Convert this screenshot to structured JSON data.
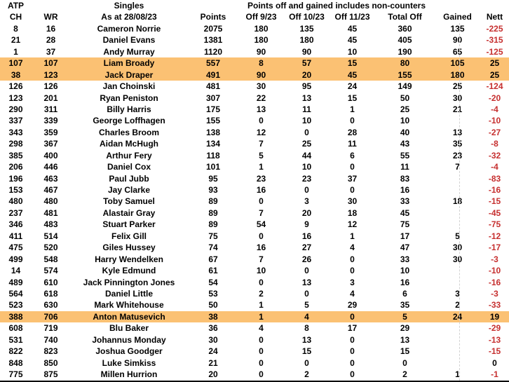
{
  "sheet": {
    "header_row1": {
      "atp": "ATP",
      "singles": "Singles",
      "note": "Points off and gained includes non-counters"
    },
    "columns": [
      "CH",
      "WR",
      "As at 28/08/23",
      "Points",
      "Off 9/23",
      "Off 10/23",
      "Off 11/23",
      "Total Off",
      "Gained",
      "Nett"
    ],
    "colors": {
      "background": "#FFFFFF",
      "text": "#000000",
      "highlight": "#FBC173",
      "negative": "#C62F2F"
    },
    "rows": [
      {
        "ch": "8",
        "wr": "16",
        "name": "Cameron Norrie",
        "points": "2075",
        "off_9_23": "180",
        "off_10_23": "135",
        "off_11_23": "45",
        "total_off": "360",
        "gained": "135",
        "nett": "-225",
        "highlighted": false
      },
      {
        "ch": "21",
        "wr": "28",
        "name": "Daniel Evans",
        "points": "1381",
        "off_9_23": "180",
        "off_10_23": "180",
        "off_11_23": "45",
        "total_off": "405",
        "gained": "90",
        "nett": "-315",
        "highlighted": false
      },
      {
        "ch": "1",
        "wr": "37",
        "name": "Andy Murray",
        "points": "1120",
        "off_9_23": "90",
        "off_10_23": "90",
        "off_11_23": "10",
        "total_off": "190",
        "gained": "65",
        "nett": "-125",
        "highlighted": false
      },
      {
        "ch": "107",
        "wr": "107",
        "name": "Liam Broady",
        "points": "557",
        "off_9_23": "8",
        "off_10_23": "57",
        "off_11_23": "15",
        "total_off": "80",
        "gained": "105",
        "nett": "25",
        "highlighted": true
      },
      {
        "ch": "38",
        "wr": "123",
        "name": "Jack Draper",
        "points": "491",
        "off_9_23": "90",
        "off_10_23": "20",
        "off_11_23": "45",
        "total_off": "155",
        "gained": "180",
        "nett": "25",
        "highlighted": true
      },
      {
        "ch": "126",
        "wr": "126",
        "name": "Jan Choinski",
        "points": "481",
        "off_9_23": "30",
        "off_10_23": "95",
        "off_11_23": "24",
        "total_off": "149",
        "gained": "25",
        "nett": "-124",
        "highlighted": false
      },
      {
        "ch": "123",
        "wr": "201",
        "name": "Ryan Peniston",
        "points": "307",
        "off_9_23": "22",
        "off_10_23": "13",
        "off_11_23": "15",
        "total_off": "50",
        "gained": "30",
        "nett": "-20",
        "highlighted": false
      },
      {
        "ch": "290",
        "wr": "311",
        "name": "Billy Harris",
        "points": "175",
        "off_9_23": "13",
        "off_10_23": "11",
        "off_11_23": "1",
        "total_off": "25",
        "gained": "21",
        "nett": "-4",
        "highlighted": false
      },
      {
        "ch": "337",
        "wr": "339",
        "name": "George Loffhagen",
        "points": "155",
        "off_9_23": "0",
        "off_10_23": "10",
        "off_11_23": "0",
        "total_off": "10",
        "gained": "",
        "nett": "-10",
        "highlighted": false
      },
      {
        "ch": "343",
        "wr": "359",
        "name": "Charles Broom",
        "points": "138",
        "off_9_23": "12",
        "off_10_23": "0",
        "off_11_23": "28",
        "total_off": "40",
        "gained": "13",
        "nett": "-27",
        "highlighted": false
      },
      {
        "ch": "298",
        "wr": "367",
        "name": "Aidan McHugh",
        "points": "134",
        "off_9_23": "7",
        "off_10_23": "25",
        "off_11_23": "11",
        "total_off": "43",
        "gained": "35",
        "nett": "-8",
        "highlighted": false
      },
      {
        "ch": "385",
        "wr": "400",
        "name": "Arthur Fery",
        "points": "118",
        "off_9_23": "5",
        "off_10_23": "44",
        "off_11_23": "6",
        "total_off": "55",
        "gained": "23",
        "nett": "-32",
        "highlighted": false
      },
      {
        "ch": "206",
        "wr": "446",
        "name": "Daniel Cox",
        "points": "101",
        "off_9_23": "1",
        "off_10_23": "10",
        "off_11_23": "0",
        "total_off": "11",
        "gained": "7",
        "nett": "-4",
        "highlighted": false
      },
      {
        "ch": "196",
        "wr": "463",
        "name": "Paul Jubb",
        "points": "95",
        "off_9_23": "23",
        "off_10_23": "23",
        "off_11_23": "37",
        "total_off": "83",
        "gained": "",
        "nett": "-83",
        "highlighted": false
      },
      {
        "ch": "153",
        "wr": "467",
        "name": "Jay Clarke",
        "points": "93",
        "off_9_23": "16",
        "off_10_23": "0",
        "off_11_23": "0",
        "total_off": "16",
        "gained": "",
        "nett": "-16",
        "highlighted": false
      },
      {
        "ch": "480",
        "wr": "480",
        "name": "Toby Samuel",
        "points": "89",
        "off_9_23": "0",
        "off_10_23": "3",
        "off_11_23": "30",
        "total_off": "33",
        "gained": "18",
        "nett": "-15",
        "highlighted": false
      },
      {
        "ch": "237",
        "wr": "481",
        "name": "Alastair Gray",
        "points": "89",
        "off_9_23": "7",
        "off_10_23": "20",
        "off_11_23": "18",
        "total_off": "45",
        "gained": "",
        "nett": "-45",
        "highlighted": false
      },
      {
        "ch": "346",
        "wr": "483",
        "name": "Stuart Parker",
        "points": "89",
        "off_9_23": "54",
        "off_10_23": "9",
        "off_11_23": "12",
        "total_off": "75",
        "gained": "",
        "nett": "-75",
        "highlighted": false
      },
      {
        "ch": "411",
        "wr": "514",
        "name": "Felix Gill",
        "points": "75",
        "off_9_23": "0",
        "off_10_23": "16",
        "off_11_23": "1",
        "total_off": "17",
        "gained": "5",
        "nett": "-12",
        "highlighted": false
      },
      {
        "ch": "475",
        "wr": "520",
        "name": "Giles Hussey",
        "points": "74",
        "off_9_23": "16",
        "off_10_23": "27",
        "off_11_23": "4",
        "total_off": "47",
        "gained": "30",
        "nett": "-17",
        "highlighted": false
      },
      {
        "ch": "499",
        "wr": "548",
        "name": "Harry Wendelken",
        "points": "67",
        "off_9_23": "7",
        "off_10_23": "26",
        "off_11_23": "0",
        "total_off": "33",
        "gained": "30",
        "nett": "-3",
        "highlighted": false
      },
      {
        "ch": "14",
        "wr": "574",
        "name": "Kyle Edmund",
        "points": "61",
        "off_9_23": "10",
        "off_10_23": "0",
        "off_11_23": "0",
        "total_off": "10",
        "gained": "",
        "nett": "-10",
        "highlighted": false
      },
      {
        "ch": "489",
        "wr": "610",
        "name": "Jack Pinnington Jones",
        "points": "54",
        "off_9_23": "0",
        "off_10_23": "13",
        "off_11_23": "3",
        "total_off": "16",
        "gained": "",
        "nett": "-16",
        "highlighted": false
      },
      {
        "ch": "564",
        "wr": "618",
        "name": "Daniel Little",
        "points": "53",
        "off_9_23": "2",
        "off_10_23": "0",
        "off_11_23": "4",
        "total_off": "6",
        "gained": "3",
        "nett": "-3",
        "highlighted": false
      },
      {
        "ch": "523",
        "wr": "630",
        "name": "Mark Whitehouse",
        "points": "50",
        "off_9_23": "1",
        "off_10_23": "5",
        "off_11_23": "29",
        "total_off": "35",
        "gained": "2",
        "nett": "-33",
        "highlighted": false
      },
      {
        "ch": "388",
        "wr": "706",
        "name": "Anton Matusevich",
        "points": "38",
        "off_9_23": "1",
        "off_10_23": "4",
        "off_11_23": "0",
        "total_off": "5",
        "gained": "24",
        "nett": "19",
        "highlighted": true
      },
      {
        "ch": "608",
        "wr": "719",
        "name": "Blu Baker",
        "points": "36",
        "off_9_23": "4",
        "off_10_23": "8",
        "off_11_23": "17",
        "total_off": "29",
        "gained": "",
        "nett": "-29",
        "highlighted": false
      },
      {
        "ch": "531",
        "wr": "740",
        "name": "Johannus Monday",
        "points": "30",
        "off_9_23": "0",
        "off_10_23": "13",
        "off_11_23": "0",
        "total_off": "13",
        "gained": "",
        "nett": "-13",
        "highlighted": false
      },
      {
        "ch": "822",
        "wr": "823",
        "name": "Joshua Goodger",
        "points": "24",
        "off_9_23": "0",
        "off_10_23": "15",
        "off_11_23": "0",
        "total_off": "15",
        "gained": "",
        "nett": "-15",
        "highlighted": false
      },
      {
        "ch": "848",
        "wr": "850",
        "name": "Luke Simkiss",
        "points": "21",
        "off_9_23": "0",
        "off_10_23": "0",
        "off_11_23": "0",
        "total_off": "0",
        "gained": "",
        "nett": "0",
        "highlighted": false
      },
      {
        "ch": "775",
        "wr": "875",
        "name": "Millen Hurrion",
        "points": "20",
        "off_9_23": "0",
        "off_10_23": "2",
        "off_11_23": "0",
        "total_off": "2",
        "gained": "1",
        "nett": "-1",
        "highlighted": false
      }
    ]
  }
}
